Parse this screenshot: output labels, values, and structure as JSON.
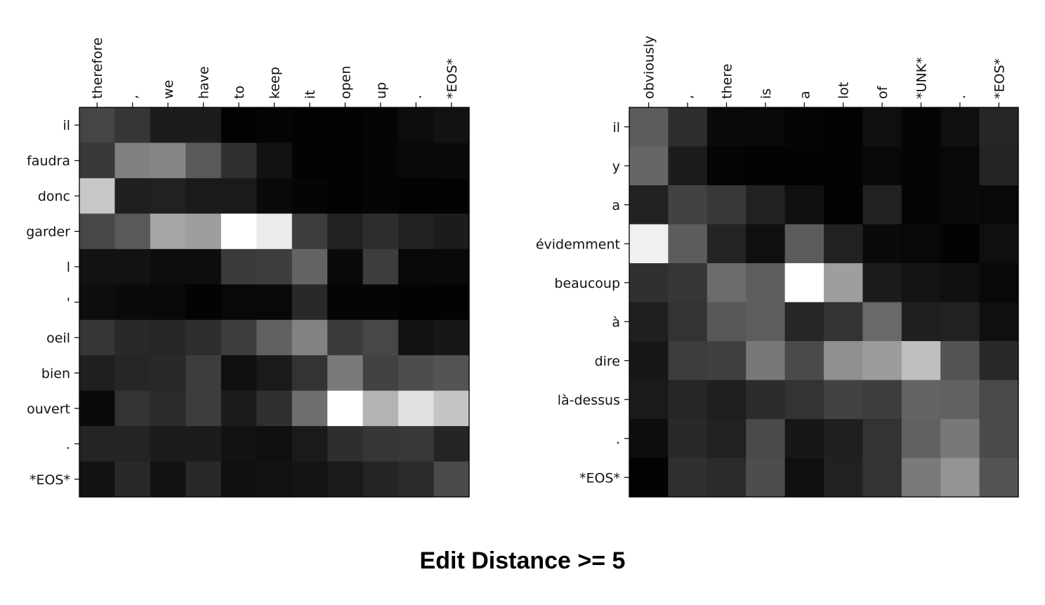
{
  "caption": "Edit Distance >= 5",
  "chart_data": [
    {
      "type": "heatmap",
      "colormap": "gray",
      "value_range": [
        0,
        1
      ],
      "x_tick_labels": [
        "therefore",
        ",",
        "we",
        "have",
        "to",
        "keep",
        "it",
        "open",
        "up",
        ".",
        "*EOS*"
      ],
      "y_tick_labels": [
        "il",
        "faudra",
        "donc",
        "garder",
        "l",
        "'",
        "oeil",
        "bien",
        "ouvert",
        ".",
        "*EOS*"
      ],
      "values": [
        [
          0.27,
          0.21,
          0.11,
          0.11,
          0.01,
          0.02,
          0.01,
          0.01,
          0.02,
          0.05,
          0.07
        ],
        [
          0.22,
          0.5,
          0.52,
          0.35,
          0.19,
          0.07,
          0.01,
          0.01,
          0.02,
          0.03,
          0.04
        ],
        [
          0.78,
          0.12,
          0.13,
          0.1,
          0.1,
          0.04,
          0.02,
          0.01,
          0.02,
          0.01,
          0.01
        ],
        [
          0.28,
          0.35,
          0.65,
          0.62,
          1.0,
          0.92,
          0.24,
          0.13,
          0.18,
          0.13,
          0.11
        ],
        [
          0.07,
          0.07,
          0.05,
          0.05,
          0.23,
          0.24,
          0.39,
          0.04,
          0.24,
          0.03,
          0.04
        ],
        [
          0.05,
          0.04,
          0.03,
          0.01,
          0.03,
          0.03,
          0.16,
          0.02,
          0.02,
          0.01,
          0.01
        ],
        [
          0.21,
          0.16,
          0.15,
          0.18,
          0.24,
          0.38,
          0.51,
          0.23,
          0.28,
          0.07,
          0.09
        ],
        [
          0.12,
          0.15,
          0.16,
          0.24,
          0.06,
          0.1,
          0.2,
          0.48,
          0.26,
          0.3,
          0.33
        ],
        [
          0.04,
          0.2,
          0.17,
          0.24,
          0.11,
          0.19,
          0.43,
          1.0,
          0.7,
          0.88,
          0.77
        ],
        [
          0.14,
          0.14,
          0.11,
          0.11,
          0.07,
          0.06,
          0.1,
          0.18,
          0.21,
          0.22,
          0.14
        ],
        [
          0.07,
          0.16,
          0.07,
          0.16,
          0.06,
          0.07,
          0.08,
          0.1,
          0.14,
          0.17,
          0.29
        ]
      ]
    },
    {
      "type": "heatmap",
      "colormap": "gray",
      "value_range": [
        0,
        1
      ],
      "x_tick_labels": [
        "obviously",
        ",",
        "there",
        "is",
        "a",
        "lot",
        "of",
        "*UNK*",
        ".",
        "*EOS*"
      ],
      "y_tick_labels": [
        "il",
        "y",
        "a",
        "évidemment",
        "beaucoup",
        "à",
        "dire",
        "là-dessus",
        ".",
        "*EOS*"
      ],
      "values": [
        [
          0.36,
          0.18,
          0.04,
          0.03,
          0.02,
          0.01,
          0.06,
          0.02,
          0.06,
          0.15
        ],
        [
          0.4,
          0.11,
          0.02,
          0.01,
          0.01,
          0.01,
          0.03,
          0.02,
          0.03,
          0.14
        ],
        [
          0.13,
          0.26,
          0.22,
          0.13,
          0.06,
          0.01,
          0.13,
          0.02,
          0.04,
          0.03
        ],
        [
          0.94,
          0.36,
          0.14,
          0.06,
          0.36,
          0.13,
          0.04,
          0.03,
          0.01,
          0.06
        ],
        [
          0.19,
          0.21,
          0.42,
          0.37,
          1.0,
          0.62,
          0.11,
          0.08,
          0.06,
          0.03
        ],
        [
          0.12,
          0.2,
          0.34,
          0.37,
          0.15,
          0.2,
          0.41,
          0.12,
          0.13,
          0.06
        ],
        [
          0.09,
          0.24,
          0.25,
          0.47,
          0.29,
          0.56,
          0.61,
          0.75,
          0.33,
          0.16
        ],
        [
          0.1,
          0.15,
          0.12,
          0.17,
          0.2,
          0.26,
          0.24,
          0.39,
          0.38,
          0.29
        ],
        [
          0.05,
          0.16,
          0.13,
          0.29,
          0.09,
          0.12,
          0.2,
          0.38,
          0.47,
          0.29
        ],
        [
          0.01,
          0.19,
          0.17,
          0.3,
          0.06,
          0.13,
          0.2,
          0.48,
          0.58,
          0.33
        ]
      ]
    }
  ]
}
